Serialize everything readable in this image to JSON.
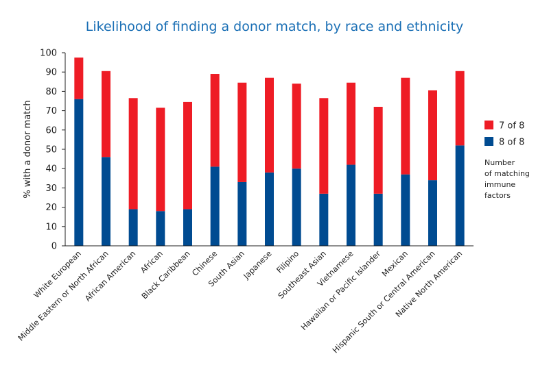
{
  "chart_data": {
    "type": "bar",
    "stacked": true,
    "title": "Likelihood of finding a donor match, by race and ethnicity",
    "ylabel": "% with a donor match",
    "xlabel": "",
    "ylim": [
      0,
      100
    ],
    "yticks": [
      0,
      10,
      20,
      30,
      40,
      50,
      60,
      70,
      80,
      90,
      100
    ],
    "categories": [
      "White European",
      "Middle Eastern or North African",
      "African American",
      "African",
      "Black Caribbean",
      "Chinese",
      "South Asian",
      "Japanese",
      "Filipino",
      "Southeast Asian",
      "Vietnamese",
      "Hawaiian or Pacific Islander",
      "Mexican",
      "Hispanic South or Central American",
      "Native North American"
    ],
    "series": [
      {
        "name": "8 of 8",
        "color": "#004b91",
        "values": [
          76,
          46,
          19,
          18,
          19,
          41,
          33,
          38,
          40,
          27,
          42,
          27,
          37,
          34,
          52
        ]
      },
      {
        "name": "7 of 8",
        "color": "#ee1c25",
        "values": [
          21.5,
          44.5,
          57.5,
          53.5,
          55.5,
          48,
          51.5,
          49,
          44,
          49.5,
          42.5,
          45,
          50,
          46.5,
          38.5
        ]
      }
    ],
    "legend": {
      "position": "right",
      "entries": [
        "7 of 8",
        "8 of 8"
      ],
      "note_lines": [
        "Number",
        "of matching",
        "immune",
        "factors"
      ]
    },
    "grid": false
  }
}
